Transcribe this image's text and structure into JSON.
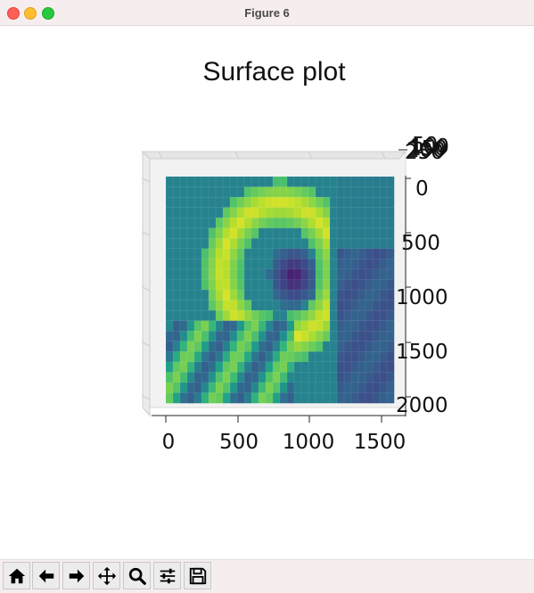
{
  "window": {
    "title": "Figure 6"
  },
  "plot": {
    "title": "Surface plot",
    "x_ticks": [
      "0",
      "500",
      "1000",
      "1500"
    ],
    "y_ticks": [
      "0",
      "500",
      "1000",
      "1500",
      "2000"
    ],
    "z_ticks": [
      "250",
      "200",
      "150",
      "100",
      "50"
    ]
  },
  "chart_data": {
    "type": "heatmap",
    "title": "Surface plot",
    "xlabel": "",
    "ylabel": "",
    "xlim": [
      0,
      1600
    ],
    "ylim": [
      0,
      2000
    ],
    "x_ticks": [
      0,
      500,
      1000,
      1500
    ],
    "y_ticks": [
      0,
      500,
      1000,
      1500,
      2000
    ],
    "z_ticks": [
      50,
      100,
      150,
      200,
      250
    ],
    "colormap": "viridis",
    "grid_shape": [
      32,
      22
    ]
  },
  "toolbar": {
    "buttons": [
      "home",
      "back",
      "forward",
      "pan",
      "zoom",
      "configure-subplots",
      "save"
    ]
  },
  "colors": {
    "titlebar": "#f6eeee",
    "close": "#ff5f57",
    "minimize": "#febc2e",
    "maximize": "#28c840"
  }
}
